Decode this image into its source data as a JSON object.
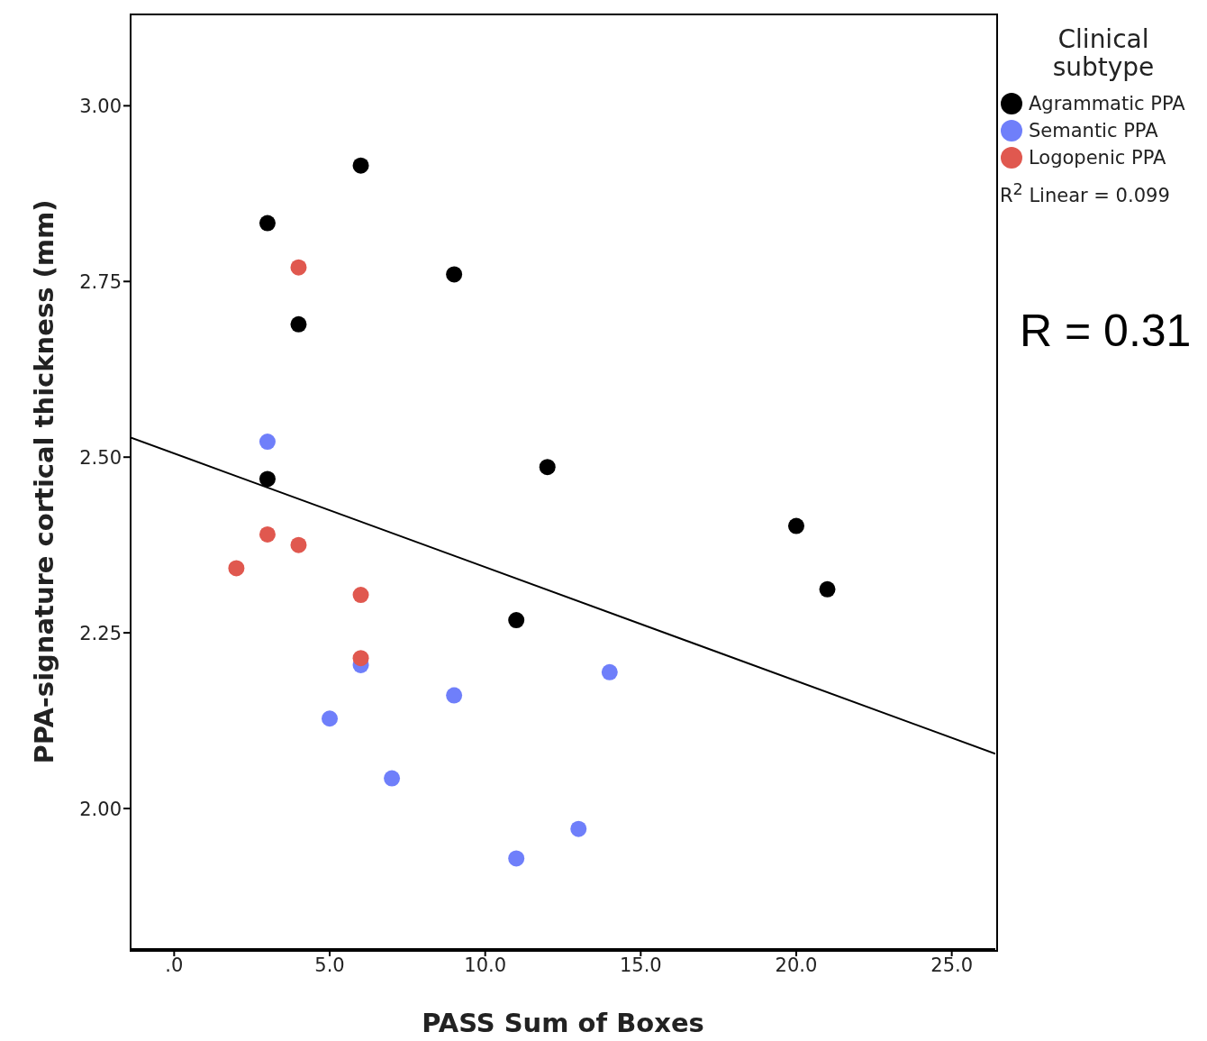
{
  "chart_data": {
    "type": "scatter",
    "xlabel": "PASS Sum of Boxes",
    "ylabel": "PPA-signature cortical thickness (mm)",
    "legend_title": "Clinical subtype",
    "legend": "right",
    "marker": "circle",
    "xlim": [
      -1.4,
      26.4
    ],
    "xticks": [
      {
        "value": 0,
        "label": ".0"
      },
      {
        "value": 5,
        "label": "5.0"
      },
      {
        "value": 10,
        "label": "10.0"
      },
      {
        "value": 15,
        "label": "15.0"
      },
      {
        "value": 20,
        "label": "20.0"
      },
      {
        "value": 25,
        "label": "25.0"
      }
    ],
    "ylim": [
      1.8,
      3.13
    ],
    "yticks": [
      {
        "value": 2,
        "label": "2.00"
      },
      {
        "value": 2.25,
        "label": "2.25"
      },
      {
        "value": 2.5,
        "label": "2.50"
      },
      {
        "value": 2.75,
        "label": "2.75"
      },
      {
        "value": 3,
        "label": "3.00"
      }
    ],
    "series": [
      {
        "name": "Agrammatic PPA",
        "color": "#000000",
        "x": [
          3,
          6,
          4,
          9,
          3,
          12,
          11,
          20,
          21
        ],
        "values": [
          2.833,
          2.915,
          2.689,
          2.76,
          2.469,
          2.486,
          2.268,
          2.402,
          2.312
        ]
      },
      {
        "name": "Semantic PPA",
        "color": "#6f7ffa",
        "x": [
          3,
          6,
          5,
          9,
          7,
          14,
          13,
          11
        ],
        "values": [
          2.522,
          2.204,
          2.128,
          2.161,
          2.043,
          2.194,
          1.971,
          1.929
        ]
      },
      {
        "name": "Logopenic PPA",
        "color": "#e0584f",
        "x": [
          4,
          3,
          4,
          2,
          6,
          6
        ],
        "values": [
          2.77,
          2.39,
          2.375,
          2.342,
          2.304,
          2.214
        ]
      },
      {
        "type": "line",
        "marker": "none",
        "color": "#000000",
        "x": [
          -1.4,
          26.4
        ],
        "values": [
          2.528,
          2.078
        ]
      }
    ],
    "annotations": [
      "R$^{2}$ Linear = 0.099",
      "R = 0.31"
    ]
  }
}
